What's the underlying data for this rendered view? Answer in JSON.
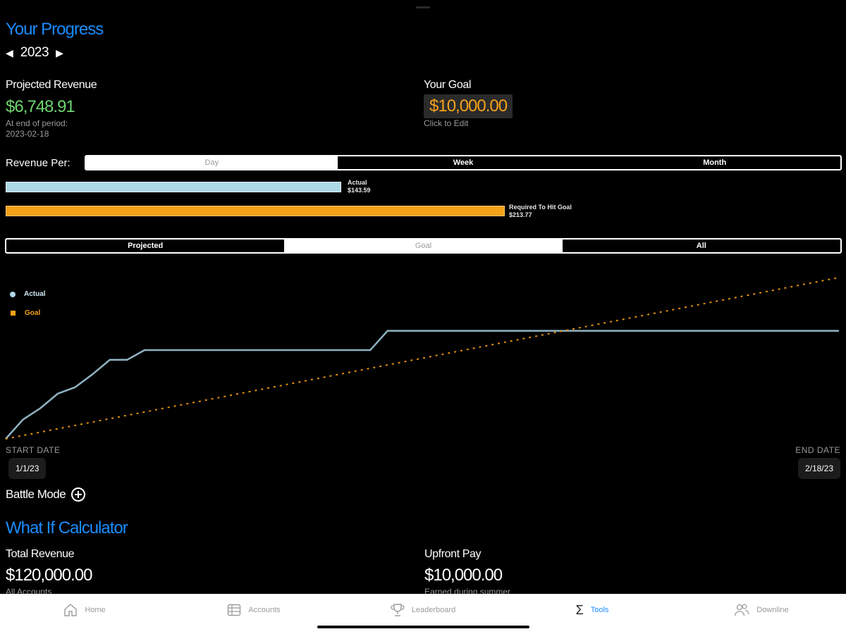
{
  "progress": {
    "title": "Your Progress",
    "year": "2023",
    "prev_icon": "triangle-left-icon",
    "next_icon": "triangle-right-icon",
    "projected_label": "Projected Revenue",
    "projected_value": "$6,748.91",
    "projected_sub": "At end of period:",
    "projected_date": "2023-02-18",
    "goal_label": "Your Goal",
    "goal_value": "$10,000.00",
    "goal_sub": "Click to Edit"
  },
  "revenue_per": {
    "label": "Revenue Per:",
    "options": [
      "Day",
      "Week",
      "Month"
    ],
    "selected": "Day",
    "actual_label": "Actual",
    "actual_value": "$143.59",
    "required_label": "Required To Hit Goal",
    "required_value": "$213.77"
  },
  "view_toggle": {
    "options": [
      "Projected",
      "Goal",
      "All"
    ],
    "selected": "Goal"
  },
  "chart_data": {
    "type": "line",
    "title": "",
    "xlabel": "",
    "ylabel": "",
    "legend": "top-left",
    "grid": false,
    "x_range": [
      "2023-01-01",
      "2023-02-18"
    ],
    "series": [
      {
        "name": "Actual",
        "color": "#add8e6",
        "style": "solid",
        "points": [
          [
            0,
            0.0
          ],
          [
            1,
            0.12
          ],
          [
            2,
            0.19
          ],
          [
            3,
            0.28
          ],
          [
            4,
            0.32
          ],
          [
            5,
            0.4
          ],
          [
            6,
            0.49
          ],
          [
            7,
            0.49
          ],
          [
            8,
            0.55
          ],
          [
            9,
            0.55
          ],
          [
            10,
            0.55
          ],
          [
            11,
            0.55
          ],
          [
            12,
            0.55
          ],
          [
            13,
            0.55
          ],
          [
            14,
            0.55
          ],
          [
            15,
            0.55
          ],
          [
            16,
            0.55
          ],
          [
            17,
            0.55
          ],
          [
            18,
            0.55
          ],
          [
            19,
            0.55
          ],
          [
            20,
            0.55
          ],
          [
            21,
            0.55
          ],
          [
            22,
            0.67
          ],
          [
            23,
            0.67
          ],
          [
            30,
            0.67
          ],
          [
            40,
            0.67
          ],
          [
            48,
            0.67
          ]
        ]
      },
      {
        "name": "Goal",
        "color": "#f5a11a",
        "style": "dotted",
        "points": [
          [
            0,
            0.0
          ],
          [
            48,
            1.0
          ]
        ]
      }
    ],
    "x_max": 48,
    "y_max": 1.0
  },
  "dates": {
    "start_label": "START DATE",
    "start_value": "1/1/23",
    "end_label": "END DATE",
    "end_value": "2/18/23"
  },
  "battle_mode": {
    "label": "Battle Mode",
    "icon": "plus-circle-icon"
  },
  "what_if": {
    "title": "What If Calculator",
    "total_revenue_label": "Total Revenue",
    "total_revenue_value": "$120,000.00",
    "total_revenue_sub": "All Accounts",
    "upfront_label": "Upfront Pay",
    "upfront_value": "$10,000.00",
    "upfront_sub": "Earned during summer"
  },
  "tabbar": {
    "items": [
      {
        "label": "Home",
        "icon": "house-icon"
      },
      {
        "label": "Accounts",
        "icon": "table-icon"
      },
      {
        "label": "Leaderboard",
        "icon": "trophy-icon"
      },
      {
        "label": "Tools",
        "icon": "sigma-icon"
      },
      {
        "label": "Downline",
        "icon": "people-icon"
      }
    ],
    "active": "Tools"
  },
  "colors": {
    "accent": "#1a8cff",
    "positive": "#6ed46e",
    "goal": "#f5a11a",
    "actual": "#add8e6"
  }
}
